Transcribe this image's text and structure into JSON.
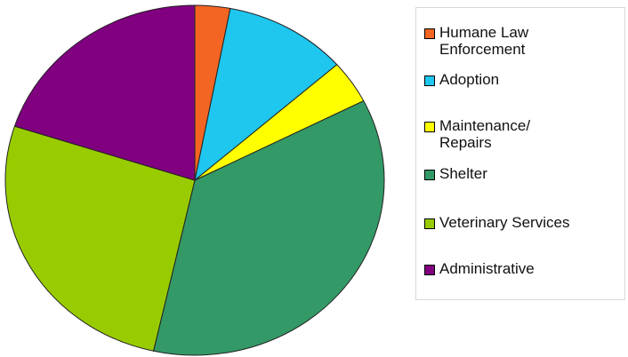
{
  "chart_data": {
    "type": "pie",
    "title": "",
    "legend_position": "right",
    "slices": [
      {
        "label": "Humane Law\nEnforcement",
        "value": 3,
        "color": "#f26522"
      },
      {
        "label": "Adoption",
        "value": 10.5,
        "color": "#1fc6ee"
      },
      {
        "label": "Maintenance/\nRepairs",
        "value": 4,
        "color": "#ffff00"
      },
      {
        "label": "Shelter",
        "value": 36,
        "color": "#339966"
      },
      {
        "label": "Veterinary Services",
        "value": 26.5,
        "color": "#99cc00"
      },
      {
        "label": "Administrative",
        "value": 20,
        "color": "#800080"
      }
    ]
  }
}
